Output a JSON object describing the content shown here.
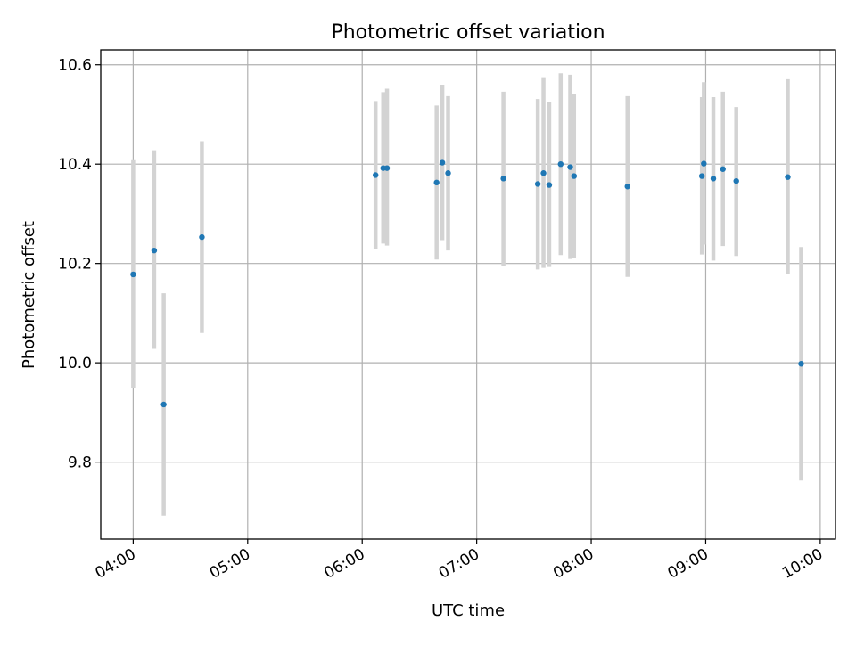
{
  "chart_data": {
    "type": "scatter",
    "title": "Photometric offset variation",
    "xlabel": "UTC time",
    "ylabel": "Photometric offset",
    "x_tick_labels": [
      "04:00",
      "05:00",
      "06:00",
      "07:00",
      "08:00",
      "09:00",
      "10:00"
    ],
    "y_tick_labels": [
      "9.8",
      "10.0",
      "10.2",
      "10.4",
      "10.6"
    ],
    "y_ticks": [
      9.8,
      10.0,
      10.2,
      10.4,
      10.6
    ],
    "xlim": [
      "03:43",
      "10:08"
    ],
    "ylim": [
      9.645,
      10.63
    ],
    "grid": true,
    "colors": {
      "marker": "#1f77b4",
      "errorbar": "#d3d3d3",
      "grid": "#b0b0b0"
    },
    "points": [
      {
        "x": "04:00",
        "y": 10.178,
        "yerr_low": 9.95,
        "yerr_high": 10.408
      },
      {
        "x": "04:11",
        "y": 10.226,
        "yerr_low": 10.028,
        "yerr_high": 10.428
      },
      {
        "x": "04:16",
        "y": 9.916,
        "yerr_low": 9.692,
        "yerr_high": 10.14
      },
      {
        "x": "04:36",
        "y": 10.253,
        "yerr_low": 10.06,
        "yerr_high": 10.446
      },
      {
        "x": "06:07",
        "y": 10.378,
        "yerr_low": 10.23,
        "yerr_high": 10.527
      },
      {
        "x": "06:11",
        "y": 10.392,
        "yerr_low": 10.24,
        "yerr_high": 10.545
      },
      {
        "x": "06:13",
        "y": 10.392,
        "yerr_low": 10.236,
        "yerr_high": 10.552
      },
      {
        "x": "06:39",
        "y": 10.363,
        "yerr_low": 10.208,
        "yerr_high": 10.518
      },
      {
        "x": "06:42",
        "y": 10.403,
        "yerr_low": 10.247,
        "yerr_high": 10.56
      },
      {
        "x": "06:45",
        "y": 10.382,
        "yerr_low": 10.226,
        "yerr_high": 10.537
      },
      {
        "x": "07:14",
        "y": 10.371,
        "yerr_low": 10.195,
        "yerr_high": 10.546
      },
      {
        "x": "07:32",
        "y": 10.36,
        "yerr_low": 10.188,
        "yerr_high": 10.531
      },
      {
        "x": "07:35",
        "y": 10.382,
        "yerr_low": 10.191,
        "yerr_high": 10.575
      },
      {
        "x": "07:38",
        "y": 10.358,
        "yerr_low": 10.193,
        "yerr_high": 10.525
      },
      {
        "x": "07:44",
        "y": 10.4,
        "yerr_low": 10.217,
        "yerr_high": 10.583
      },
      {
        "x": "07:49",
        "y": 10.394,
        "yerr_low": 10.209,
        "yerr_high": 10.58
      },
      {
        "x": "07:51",
        "y": 10.376,
        "yerr_low": 10.212,
        "yerr_high": 10.542
      },
      {
        "x": "08:19",
        "y": 10.355,
        "yerr_low": 10.173,
        "yerr_high": 10.537
      },
      {
        "x": "08:58",
        "y": 10.376,
        "yerr_low": 10.218,
        "yerr_high": 10.535
      },
      {
        "x": "08:59",
        "y": 10.401,
        "yerr_low": 10.238,
        "yerr_high": 10.565
      },
      {
        "x": "09:04",
        "y": 10.371,
        "yerr_low": 10.206,
        "yerr_high": 10.535
      },
      {
        "x": "09:09",
        "y": 10.39,
        "yerr_low": 10.235,
        "yerr_high": 10.546
      },
      {
        "x": "09:16",
        "y": 10.366,
        "yerr_low": 10.215,
        "yerr_high": 10.515
      },
      {
        "x": "09:43",
        "y": 10.374,
        "yerr_low": 10.178,
        "yerr_high": 10.571
      },
      {
        "x": "09:50",
        "y": 9.998,
        "yerr_low": 9.763,
        "yerr_high": 10.233
      }
    ]
  }
}
